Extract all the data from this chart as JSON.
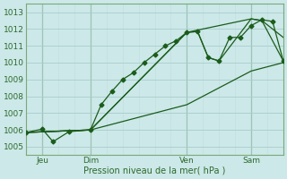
{
  "xlabel": "Pression niveau de la mer( hPa )",
  "background_color": "#cce8e8",
  "grid_color_major": "#aacccc",
  "grid_color_minor": "#c0dcdc",
  "line_color": "#1a5c1a",
  "ylim": [
    1004.5,
    1013.5
  ],
  "xlim": [
    0,
    48
  ],
  "yticks": [
    1005,
    1006,
    1007,
    1008,
    1009,
    1010,
    1011,
    1012,
    1013
  ],
  "xtick_positions": [
    3,
    12,
    30,
    42
  ],
  "xtick_labels": [
    "Jeu",
    "Dim",
    "Ven",
    "Sam"
  ],
  "vline_positions": [
    3,
    12,
    30,
    42
  ],
  "series1_x": [
    0,
    3,
    5,
    8,
    12,
    14,
    16,
    18,
    20,
    22,
    24,
    26,
    28,
    30,
    32,
    34,
    36,
    38,
    40,
    42,
    44,
    46,
    48
  ],
  "series1_y": [
    1005.85,
    1006.05,
    1005.3,
    1005.9,
    1006.0,
    1007.5,
    1008.3,
    1009.0,
    1009.4,
    1010.0,
    1010.5,
    1011.0,
    1011.3,
    1011.8,
    1011.85,
    1010.3,
    1010.1,
    1011.5,
    1011.5,
    1012.2,
    1012.55,
    1012.45,
    1010.1
  ],
  "series2_x": [
    0,
    12,
    30,
    42,
    48
  ],
  "series2_y": [
    1005.85,
    1006.0,
    1007.5,
    1009.5,
    1010.0
  ],
  "series3_x": [
    0,
    12,
    30,
    42,
    44,
    48
  ],
  "series3_y": [
    1005.85,
    1006.0,
    1011.8,
    1012.6,
    1012.5,
    1011.5
  ],
  "series4_x": [
    0,
    12,
    30,
    32,
    34,
    36,
    42,
    44,
    48
  ],
  "series4_y": [
    1005.85,
    1006.0,
    1011.8,
    1011.85,
    1010.3,
    1010.1,
    1012.6,
    1012.5,
    1010.1
  ]
}
